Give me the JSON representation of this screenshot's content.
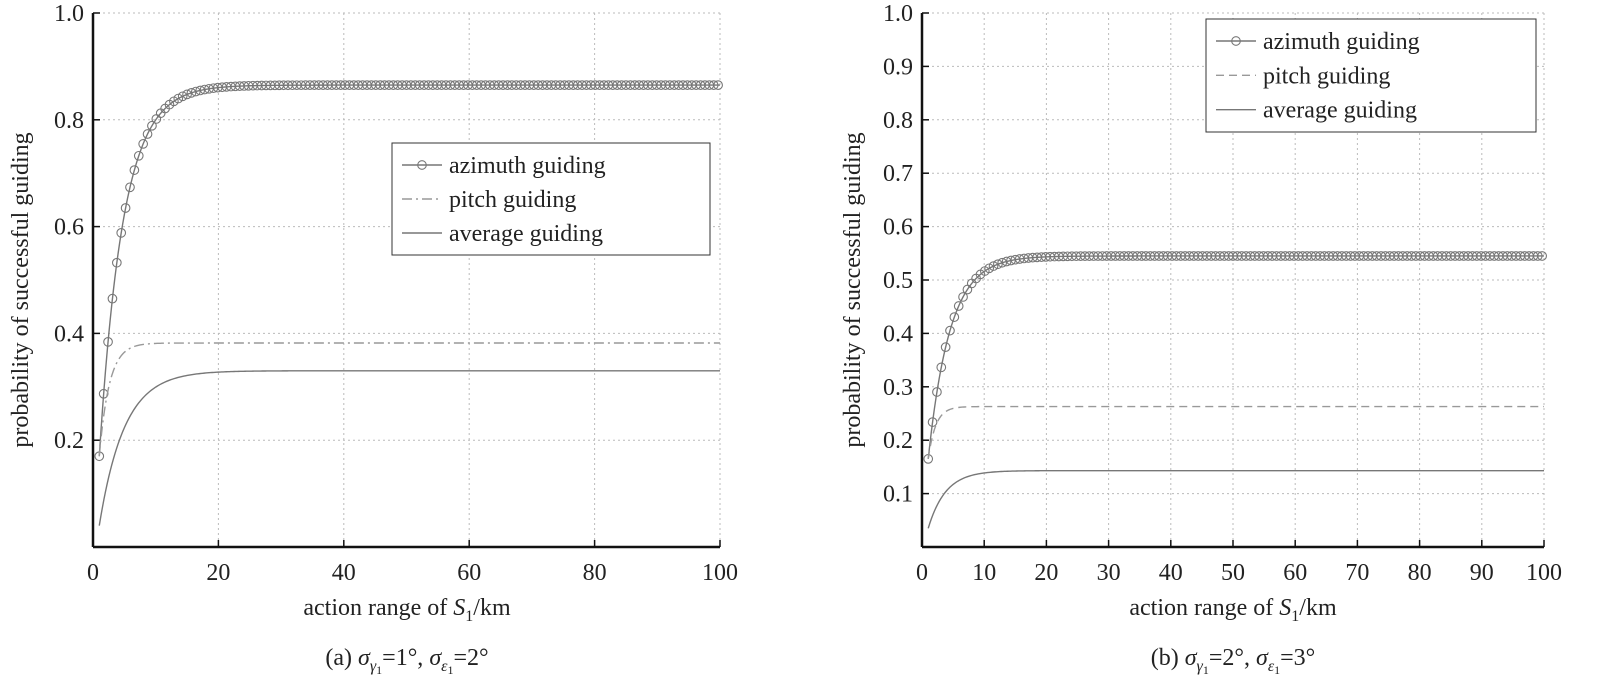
{
  "chart_data": [
    {
      "type": "line",
      "caption": {
        "prefix": "(a) ",
        "s1": "σ",
        "s1_sub": "γ",
        "s1_subsub": "1",
        "s1_val": "=1°, ",
        "s2": "σ",
        "s2_sub": "ε",
        "s2_subsub": "1",
        "s2_val": "=2°"
      },
      "xlabel": {
        "text": "action range of ",
        "var": "S",
        "var_sub": "1",
        "unit": "/km"
      },
      "ylabel": "probability of successful guiding",
      "xlim": [
        0,
        100
      ],
      "ylim": [
        0,
        1.0
      ],
      "xticks": [
        0,
        20,
        40,
        60,
        80,
        100
      ],
      "xtick_labels": [
        "0",
        "20",
        "40",
        "60",
        "80",
        "100"
      ],
      "yticks": [
        0.2,
        0.4,
        0.6,
        0.8,
        1.0
      ],
      "ytick_labels": [
        "0.2",
        "0.4",
        "0.6",
        "0.8",
        "1.0"
      ],
      "grid": true,
      "legend_position": "center-right",
      "series": [
        {
          "name": "azimuth guiding",
          "marker": "circle",
          "style": "solid",
          "color": "#777777",
          "model": {
            "type": "exp",
            "x0": 1,
            "start": 0.17,
            "end": 0.865,
            "tau": 3.8
          }
        },
        {
          "name": "pitch guiding",
          "marker": "none",
          "style": "dashdot",
          "color": "#999999",
          "model": {
            "type": "exp",
            "x0": 1,
            "start": 0.17,
            "end": 0.382,
            "tau": 1.6
          }
        },
        {
          "name": "average guiding",
          "marker": "none",
          "style": "solid",
          "color": "#777777",
          "model": {
            "type": "exp",
            "x0": 1,
            "start": 0.04,
            "end": 0.33,
            "tau": 4.0
          }
        }
      ]
    },
    {
      "type": "line",
      "caption": {
        "prefix": "(b) ",
        "s1": "σ",
        "s1_sub": "γ",
        "s1_subsub": "1",
        "s1_val": "=2°, ",
        "s2": "σ",
        "s2_sub": "ε",
        "s2_subsub": "1",
        "s2_val": "=3°"
      },
      "xlabel": {
        "text": "action range of ",
        "var": "S",
        "var_sub": "1",
        "unit": "/km"
      },
      "ylabel": "probability of successful guiding",
      "xlim": [
        0,
        100
      ],
      "ylim": [
        0,
        1.0
      ],
      "xticks": [
        0,
        10,
        20,
        30,
        40,
        50,
        60,
        70,
        80,
        90,
        100
      ],
      "xtick_labels": [
        "0",
        "10",
        "20",
        "30",
        "40",
        "50",
        "60",
        "70",
        "80",
        "90",
        "100"
      ],
      "yticks": [
        0.1,
        0.2,
        0.3,
        0.4,
        0.5,
        0.6,
        0.7,
        0.8,
        0.9,
        1.0
      ],
      "ytick_labels": [
        "0.1",
        "0.2",
        "0.3",
        "0.4",
        "0.5",
        "0.6",
        "0.7",
        "0.8",
        "0.9",
        "1.0"
      ],
      "grid": true,
      "legend_position": "top-right",
      "series": [
        {
          "name": "azimuth guiding",
          "marker": "circle",
          "style": "solid",
          "color": "#777777",
          "model": {
            "type": "exp",
            "x0": 1,
            "start": 0.165,
            "end": 0.545,
            "tau": 3.5
          }
        },
        {
          "name": "pitch guiding",
          "marker": "none",
          "style": "dashed",
          "color": "#999999",
          "model": {
            "type": "exp",
            "x0": 1,
            "start": 0.165,
            "end": 0.263,
            "tau": 1.2
          }
        },
        {
          "name": "average guiding",
          "marker": "none",
          "style": "solid",
          "color": "#777777",
          "model": {
            "type": "exp",
            "x0": 1,
            "start": 0.035,
            "end": 0.143,
            "tau": 2.8
          }
        }
      ]
    }
  ]
}
